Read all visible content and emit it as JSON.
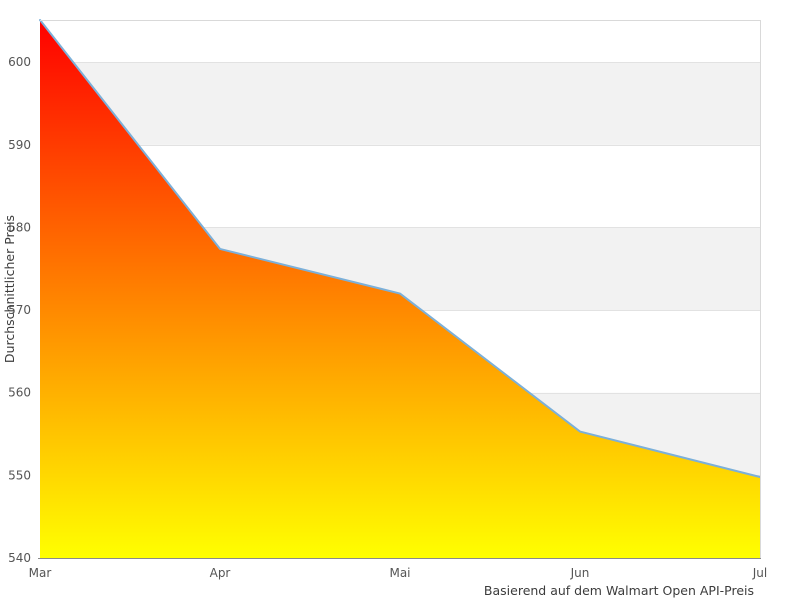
{
  "chart_data": {
    "type": "area",
    "title": "",
    "xlabel": "Basierend auf dem Walmart Open API-Preis",
    "ylabel": "Durchschnittlicher Preis",
    "categories": [
      "Mar",
      "Apr",
      "Mai",
      "Jun",
      "Jul"
    ],
    "values": [
      605.1,
      577.4,
      572.0,
      555.3,
      549.8
    ],
    "baseline": 540,
    "ylim": [
      540,
      605.1
    ],
    "yticks": [
      540,
      550,
      560,
      570,
      580,
      590,
      600
    ],
    "grid": "alternating-horizontal-bands",
    "legend": "none",
    "style": {
      "line_color": "#7cb0d9",
      "gradient_top": "#ff0000",
      "gradient_bottom": "#ffff00",
      "band_fill": "#f2f2f2",
      "gridline_color": "#e2e2e2",
      "plot_border_color": "#d9d9d9",
      "axis_line_color": "#8a8a8a",
      "tick_label_color": "#555555",
      "axis_title_color": "#3c3c3c",
      "background": "#ffffff"
    }
  }
}
